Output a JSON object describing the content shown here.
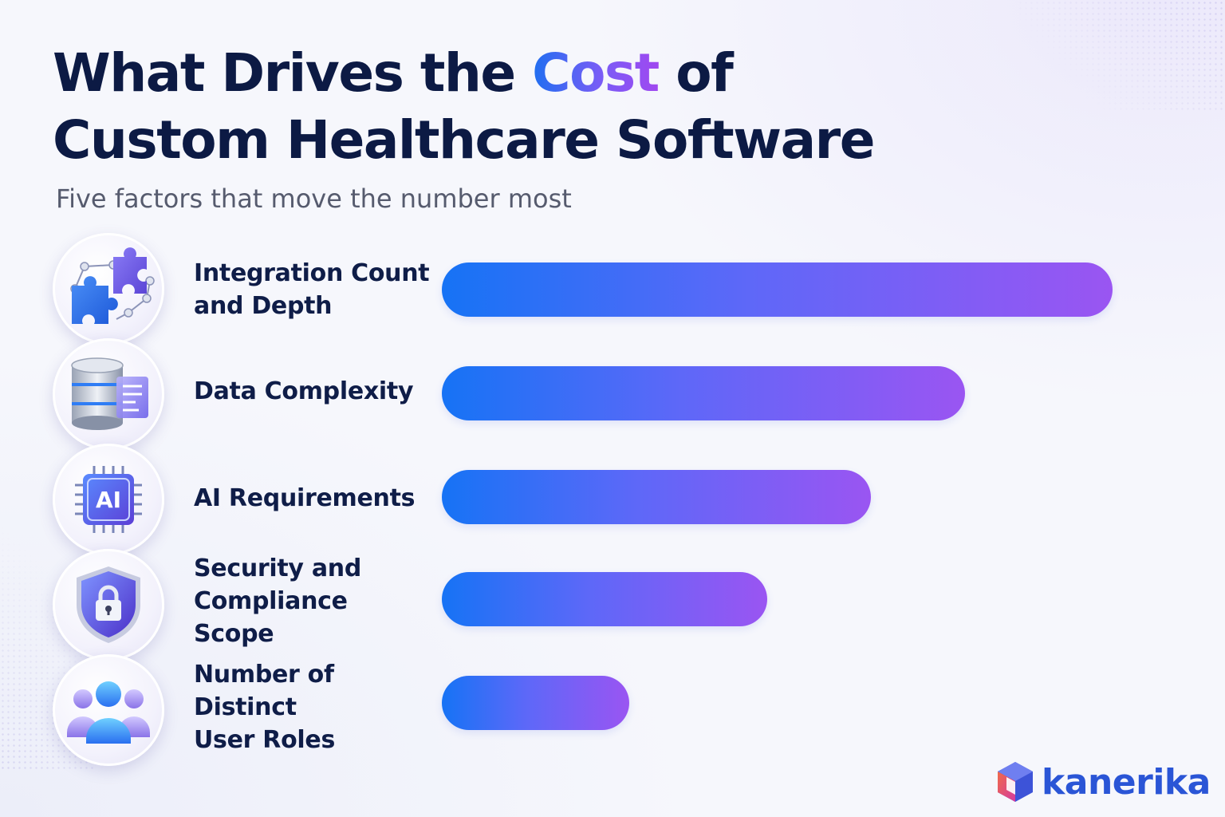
{
  "title": {
    "line1_before": "What Drives the ",
    "line1_accent": "Cost",
    "line1_after": " of",
    "line2": "Custom Healthcare Software"
  },
  "subtitle": "Five factors that move the number most",
  "chart_data": {
    "type": "bar",
    "orientation": "horizontal",
    "categories": [
      "Integration Count and Depth",
      "Data Complexity",
      "AI Requirements",
      "Security and Compliance Scope",
      "Number of Distinct User Roles"
    ],
    "values": [
      100,
      78,
      64,
      48.5,
      28
    ],
    "category_icons": [
      "puzzle-network-icon",
      "database-icon",
      "ai-chip-icon",
      "shield-lock-icon",
      "users-icon"
    ],
    "xlim": [
      0,
      100
    ],
    "grid": false,
    "axis_tick_labels_shown": false,
    "bar_gradient": [
      "#1673f5",
      "#9a55f2"
    ]
  },
  "rows": [
    {
      "label_line1": "Integration Count",
      "label_line2": "and Depth"
    },
    {
      "label_line1": "Data Complexity",
      "label_line2": ""
    },
    {
      "label_line1": "AI Requirements",
      "label_line2": ""
    },
    {
      "label_line1": "Security and",
      "label_line2": "Compliance Scope"
    },
    {
      "label_line1": "Number of Distinct",
      "label_line2": "User Roles"
    }
  ],
  "icons": {
    "ai_chip_text": "AI"
  },
  "brand": {
    "name": "kanerika",
    "color": "#2a55d6",
    "logo_icon": "cube-logo-icon"
  }
}
